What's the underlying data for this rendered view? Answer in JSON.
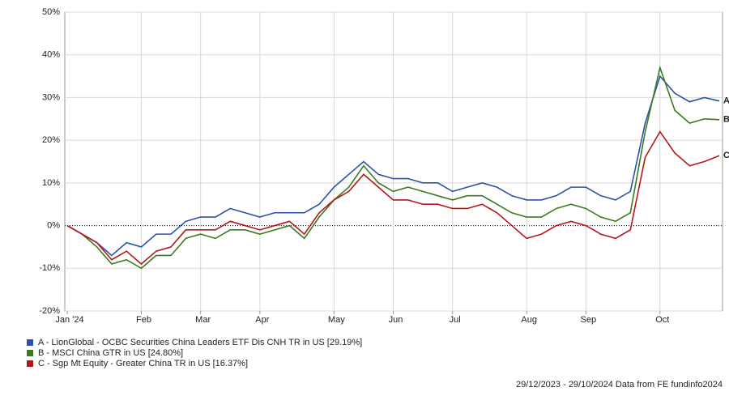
{
  "chart_data": {
    "type": "line",
    "categories": [
      "Jan '24",
      null,
      null,
      null,
      null,
      "Feb",
      null,
      null,
      null,
      "Mar",
      null,
      null,
      null,
      "Apr",
      null,
      null,
      null,
      null,
      "May",
      null,
      null,
      null,
      "Jun",
      null,
      null,
      null,
      "Jul",
      null,
      null,
      null,
      null,
      "Aug",
      null,
      null,
      null,
      "Sep",
      null,
      null,
      null,
      null,
      "Oct",
      null,
      null,
      null,
      null
    ],
    "series": [
      {
        "name": "A - LionGlobal - OCBC Securities China Leaders ETF Dis CNH TR in US [29.19%]",
        "tag": "A",
        "color": "#2a52a8",
        "values": [
          0,
          -2,
          -4,
          -7,
          -4,
          -5,
          -2,
          -2,
          1,
          2,
          2,
          4,
          3,
          2,
          3,
          3,
          3,
          5,
          9,
          12,
          15,
          12,
          11,
          11,
          10,
          10,
          8,
          9,
          10,
          9,
          7,
          6,
          6,
          7,
          9,
          9,
          7,
          6,
          8,
          24,
          35,
          31,
          29,
          30,
          29.19
        ]
      },
      {
        "name": "B - MSCI China GTR in US [24.80%]",
        "tag": "B",
        "color": "#3b7a1f",
        "values": [
          0,
          -2,
          -5,
          -9,
          -8,
          -10,
          -7,
          -7,
          -3,
          -2,
          -3,
          -1,
          -1,
          -2,
          -1,
          0,
          -3,
          2,
          6,
          9,
          14,
          10,
          8,
          9,
          8,
          7,
          6,
          7,
          7,
          5,
          3,
          2,
          2,
          4,
          5,
          4,
          2,
          1,
          3,
          22,
          37,
          27,
          24,
          25,
          24.8
        ]
      },
      {
        "name": "C - Sgp Mt Equity - Greater China TR in US [16.37%]",
        "tag": "C",
        "color": "#b3171b",
        "values": [
          0,
          -2,
          -4,
          -8,
          -6,
          -9,
          -6,
          -5,
          -1,
          -1,
          -1,
          1,
          0,
          -1,
          0,
          1,
          -2,
          3,
          6,
          8,
          12,
          9,
          6,
          6,
          5,
          5,
          4,
          4,
          5,
          3,
          0,
          -3,
          -2,
          0,
          1,
          0,
          -2,
          -3,
          -1,
          16,
          22,
          17,
          14,
          15,
          16.37
        ]
      }
    ],
    "ylim": [
      -20,
      50
    ],
    "yticks": [
      {
        "value": -20,
        "label": "-20%"
      },
      {
        "value": -10,
        "label": "-10%"
      },
      {
        "value": 0,
        "label": "0%"
      },
      {
        "value": 10,
        "label": "10%"
      },
      {
        "value": 20,
        "label": "20%"
      },
      {
        "value": 30,
        "label": "30%"
      },
      {
        "value": 40,
        "label": "40%"
      },
      {
        "value": 50,
        "label": "50%"
      }
    ],
    "grid": true,
    "footer": "29/12/2023 - 29/10/2024 Data from FE fundinfo2024"
  }
}
